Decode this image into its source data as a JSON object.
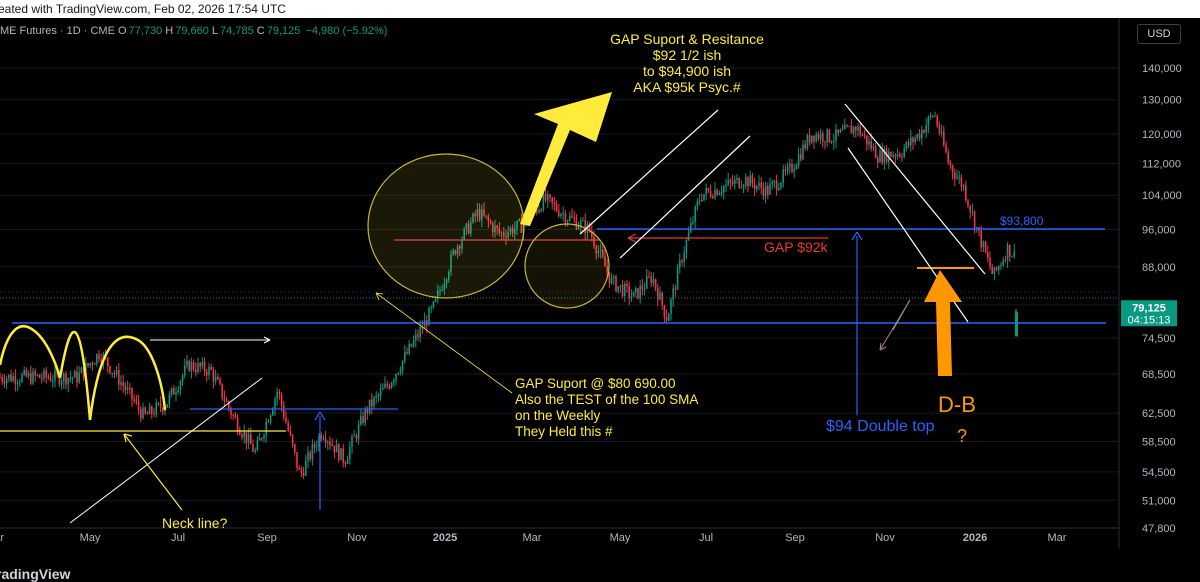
{
  "header": {
    "caption": "eated with TradingView.com, Feb 02, 2026 17:54 UTC"
  },
  "legend": {
    "symbol": "ME Futures · 1D · CME",
    "open_label": "O",
    "open": "77,730",
    "high_label": "H",
    "high": "79,660",
    "low_label": "L",
    "low": "74,785",
    "close_label": "C",
    "close": "79,125",
    "change": "−4,980 (−5.92%)"
  },
  "currency_button": "USD",
  "footer": {
    "logo": "radingView"
  },
  "colors": {
    "up": "#089981",
    "down": "#f23645",
    "annotation_yellow": "#ffeb3b",
    "annotation_blue": "#2962ff",
    "annotation_orange": "#ff9800",
    "red_line": "#e53935"
  },
  "chart_data": {
    "type": "candlestick",
    "y_axis": {
      "scale": "log",
      "ticks": [
        "140,000",
        "130,000",
        "120,000",
        "112,000",
        "104,000",
        "96,000",
        "88,000",
        "80,500",
        "74,500",
        "68,500",
        "62,500",
        "58,500",
        "54,500",
        "51,000",
        "47,800"
      ],
      "tick_values": [
        140000,
        130000,
        120000,
        112000,
        104000,
        96000,
        88000,
        80500,
        74500,
        68500,
        62500,
        58500,
        54500,
        51000,
        47800
      ],
      "range": [
        45000,
        160000
      ]
    },
    "x_axis": {
      "ticks": [
        "ar",
        "May",
        "Jul",
        "Sep",
        "Nov",
        "2025",
        "Mar",
        "May",
        "Jul",
        "Sep",
        "Nov",
        "2026",
        "Mar"
      ],
      "bold_ticks": [
        "2025",
        "2026"
      ]
    },
    "last_price": {
      "value": 79125,
      "label": "79,125",
      "countdown": "04:15:13"
    },
    "price_path": [
      {
        "x": "Mar 2024",
        "y": 68000
      },
      {
        "x": "Mar 2024",
        "y": 72000
      },
      {
        "x": "Apr 2024",
        "y": 67000
      },
      {
        "x": "Apr 2024",
        "y": 62000
      },
      {
        "x": "May 2024",
        "y": 64000
      },
      {
        "x": "May 2024",
        "y": 70000
      },
      {
        "x": "Jun 2024",
        "y": 69000
      },
      {
        "x": "Jun 2024",
        "y": 62000
      },
      {
        "x": "Jul 2024",
        "y": 57000
      },
      {
        "x": "Jul 2024",
        "y": 66000
      },
      {
        "x": "Aug 2024",
        "y": 54000
      },
      {
        "x": "Aug 2024",
        "y": 60000
      },
      {
        "x": "Sep 2024",
        "y": 56000
      },
      {
        "x": "Sep 2024",
        "y": 63000
      },
      {
        "x": "Oct 2024",
        "y": 67000
      },
      {
        "x": "Oct 2024",
        "y": 73000
      },
      {
        "x": "Nov 2024",
        "y": 80000
      },
      {
        "x": "Nov 2024",
        "y": 92000
      },
      {
        "x": "Dec 2024",
        "y": 100000
      },
      {
        "x": "Dec 2024",
        "y": 95000
      },
      {
        "x": "Jan 2025",
        "y": 97000
      },
      {
        "x": "Jan 2025",
        "y": 103000
      },
      {
        "x": "Feb 2025",
        "y": 99000
      },
      {
        "x": "Feb 2025",
        "y": 96000
      },
      {
        "x": "Mar 2025",
        "y": 85000
      },
      {
        "x": "Mar 2025",
        "y": 82000
      },
      {
        "x": "Apr 2025",
        "y": 86000
      },
      {
        "x": "Apr 2025",
        "y": 78000
      },
      {
        "x": "Apr 2025",
        "y": 90000
      },
      {
        "x": "May 2025",
        "y": 104000
      },
      {
        "x": "May 2025",
        "y": 106000
      },
      {
        "x": "Jun 2025",
        "y": 108000
      },
      {
        "x": "Jun 2025",
        "y": 105000
      },
      {
        "x": "Jul 2025",
        "y": 110000
      },
      {
        "x": "Jul 2025",
        "y": 120000
      },
      {
        "x": "Aug 2025",
        "y": 119000
      },
      {
        "x": "Aug 2025",
        "y": 122000
      },
      {
        "x": "Sep 2025",
        "y": 114000
      },
      {
        "x": "Sep 2025",
        "y": 115000
      },
      {
        "x": "Oct 2025",
        "y": 120000
      },
      {
        "x": "Oct 2025",
        "y": 126000
      },
      {
        "x": "Oct 2025",
        "y": 112000
      },
      {
        "x": "Nov 2025",
        "y": 106000
      },
      {
        "x": "Nov 2025",
        "y": 95000
      },
      {
        "x": "Nov 2025",
        "y": 86000
      },
      {
        "x": "Dec 2025",
        "y": 92000
      },
      {
        "x": "Dec 2025",
        "y": 88000
      },
      {
        "x": "Dec 2025",
        "y": 87000
      },
      {
        "x": "Jan 2026",
        "y": 94000
      },
      {
        "x": "Jan 2026",
        "y": 91000
      },
      {
        "x": "Jan 2026",
        "y": 88000
      },
      {
        "x": "Feb 2026",
        "y": 79125
      }
    ],
    "annotations": [
      {
        "text_lines": [
          "GAP Suport & Resitance",
          "$92 1/2 ish",
          "to $94,900 ish",
          "AKA $95k Psyc.#"
        ],
        "color": "yellow"
      },
      {
        "text": "GAP $92k",
        "color": "red"
      },
      {
        "text": "$93,800",
        "color": "blue"
      },
      {
        "text_lines": [
          "GAP Suport @ $80 690.00",
          "Also the TEST of the 100 SMA",
          "on the Weekly",
          "They Held this #"
        ],
        "color": "yellow"
      },
      {
        "text": "$94 Double top",
        "color": "blue"
      },
      {
        "text": "D-B",
        "color": "orange"
      },
      {
        "text": "?",
        "color": "orange"
      },
      {
        "text": "Neck line?",
        "color": "yellow"
      }
    ]
  }
}
